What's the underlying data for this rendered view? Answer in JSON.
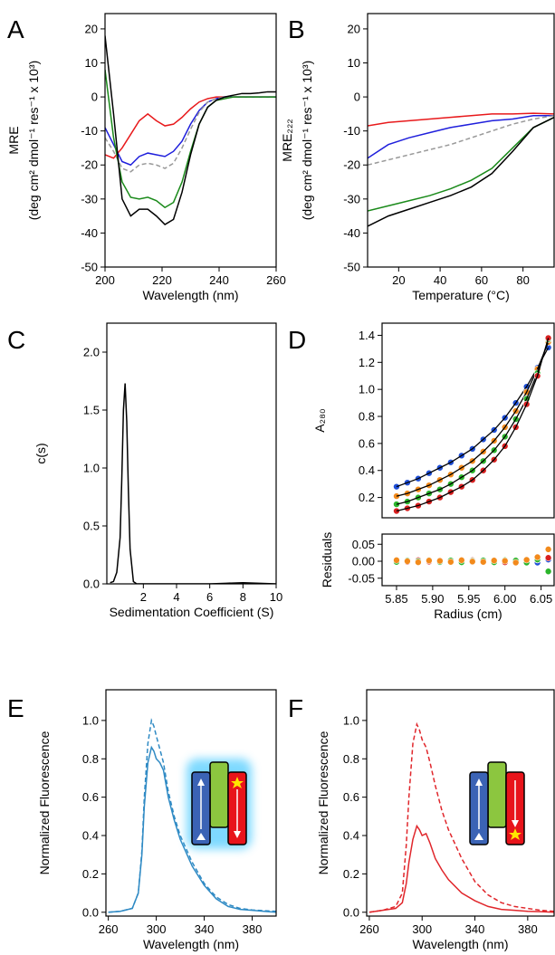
{
  "chart_data": [
    {
      "type": "line",
      "label": "A",
      "xlabel": "Wavelength (nm)",
      "ylabel": [
        "MRE",
        "(deg cm² dmol⁻¹ res⁻¹ x 10³)"
      ],
      "xlim": [
        200,
        260
      ],
      "ylim": [
        -50,
        24.5
      ],
      "xticks": [
        200,
        220,
        240,
        260
      ],
      "yticks": [
        -50,
        -40,
        -30,
        -20,
        -10,
        0,
        10,
        20
      ],
      "x": [
        200,
        203,
        206,
        209,
        212,
        215,
        218,
        221,
        224,
        227,
        230,
        233,
        236,
        239,
        242,
        245,
        248,
        251,
        254,
        257,
        260
      ],
      "series": [
        {
          "color": "#e8191b",
          "values": [
            -17,
            -18,
            -15,
            -11,
            -7,
            -5,
            -7,
            -8.5,
            -8,
            -6,
            -3.5,
            -1.5,
            -0.5,
            0,
            0,
            0,
            0,
            0,
            0,
            0,
            0
          ]
        },
        {
          "color": "#1f1fdc",
          "values": [
            -9,
            -14,
            -19,
            -20,
            -17.5,
            -16.5,
            -17,
            -17.5,
            -16,
            -13,
            -8,
            -4,
            -1.5,
            -0.5,
            0,
            0,
            0,
            0,
            0,
            0,
            0
          ]
        },
        {
          "color": "#999999",
          "dash": true,
          "values": [
            -12,
            -16,
            -21,
            -22,
            -20,
            -19.5,
            -20,
            -21,
            -19.5,
            -15,
            -9.5,
            -4.5,
            -1.5,
            -0.5,
            0,
            0,
            0,
            0,
            0,
            0,
            0
          ]
        },
        {
          "color": "#1a8a1a",
          "values": [
            8,
            -12,
            -25,
            -29.5,
            -30,
            -29.5,
            -30.5,
            -32.5,
            -31,
            -25,
            -16,
            -8,
            -3,
            -1,
            -0.5,
            0,
            0,
            0,
            0,
            0,
            0
          ]
        },
        {
          "color": "#000000",
          "values": [
            18,
            -5,
            -30,
            -35,
            -33,
            -33,
            -35,
            -37.5,
            -36,
            -28,
            -17,
            -8,
            -3,
            -1,
            0,
            0.5,
            1,
            1,
            1.2,
            1.5,
            1.5
          ]
        }
      ]
    },
    {
      "type": "line",
      "label": "B",
      "xlabel": "Temperature (°C)",
      "ylabel": [
        "MRE₂₂₂",
        "(deg cm² dmol⁻¹ res⁻¹ x 10³)"
      ],
      "xlim": [
        5,
        95
      ],
      "ylim": [
        -50,
        24.5
      ],
      "xticks": [
        20,
        40,
        60,
        80
      ],
      "yticks": [
        -50,
        -40,
        -30,
        -20,
        -10,
        0,
        10,
        20
      ],
      "x": [
        5,
        15,
        25,
        35,
        45,
        55,
        65,
        75,
        85,
        95
      ],
      "series": [
        {
          "color": "#e8191b",
          "values": [
            -8.5,
            -7.5,
            -7,
            -6.5,
            -6,
            -5.5,
            -5,
            -5,
            -4.8,
            -5
          ]
        },
        {
          "color": "#1f1fdc",
          "values": [
            -18,
            -14,
            -12,
            -10.5,
            -9,
            -8,
            -7,
            -6.5,
            -5.5,
            -5.5
          ]
        },
        {
          "color": "#999999",
          "dash": true,
          "values": [
            -20,
            -18.5,
            -17,
            -15.5,
            -14,
            -12,
            -10,
            -8,
            -6.5,
            -5.5
          ]
        },
        {
          "color": "#1a8a1a",
          "values": [
            -33.5,
            -32,
            -30.5,
            -29,
            -27,
            -24.5,
            -21,
            -15,
            -9,
            -6
          ]
        },
        {
          "color": "#000000",
          "values": [
            -38,
            -35,
            -33,
            -31,
            -29,
            -26.5,
            -22.5,
            -16,
            -9,
            -6
          ]
        }
      ]
    },
    {
      "type": "line",
      "label": "C",
      "xlabel": "Sedimentation Coefficient (S)",
      "ylabel": [
        "c(s)"
      ],
      "xlim": [
        -0.2,
        10
      ],
      "ylim": [
        0,
        2.25
      ],
      "xticks": [
        2,
        4,
        6,
        8,
        10
      ],
      "yticks": [
        {
          "value": 0,
          "label": "0.0"
        },
        0.5,
        {
          "value": 1,
          "label": "1.0"
        },
        1.5,
        {
          "value": 2,
          "label": "2.0"
        }
      ],
      "x": [
        0,
        0.2,
        0.4,
        0.6,
        0.7,
        0.8,
        0.9,
        1.0,
        1.1,
        1.2,
        1.4,
        1.6,
        2,
        4,
        6,
        7,
        8,
        9,
        10
      ],
      "series": [
        {
          "color": "#000000",
          "values": [
            0.01,
            0.02,
            0.1,
            0.4,
            0.9,
            1.5,
            1.73,
            1.4,
            0.8,
            0.3,
            0.02,
            0,
            0,
            0,
            0,
            0.005,
            0.01,
            0.005,
            0
          ]
        }
      ]
    },
    {
      "type": "scatter",
      "label": "D",
      "ylabel": [
        "A₂₈₀"
      ],
      "fit_line": true,
      "xlim": [
        5.83,
        6.068
      ],
      "ylim": [
        0.05,
        1.49
      ],
      "yticks": [
        0.2,
        0.4,
        0.6,
        0.8,
        {
          "value": 1,
          "label": "1.0"
        },
        1.2,
        1.4
      ],
      "x": [
        5.85,
        5.865,
        5.88,
        5.895,
        5.91,
        5.925,
        5.94,
        5.955,
        5.97,
        5.985,
        6.0,
        6.015,
        6.03,
        6.045,
        6.06
      ],
      "series": [
        {
          "color": "#1f4fd8",
          "values": [
            0.28,
            0.31,
            0.34,
            0.38,
            0.42,
            0.46,
            0.51,
            0.56,
            0.63,
            0.7,
            0.79,
            0.9,
            1.02,
            1.16,
            1.31
          ]
        },
        {
          "color": "#f28a1c",
          "values": [
            0.21,
            0.23,
            0.26,
            0.29,
            0.33,
            0.37,
            0.42,
            0.47,
            0.54,
            0.62,
            0.72,
            0.84,
            0.98,
            1.15,
            1.35
          ]
        },
        {
          "color": "#2bb52b",
          "values": [
            0.15,
            0.17,
            0.2,
            0.23,
            0.26,
            0.3,
            0.35,
            0.4,
            0.47,
            0.55,
            0.65,
            0.78,
            0.93,
            1.12,
            1.37
          ]
        },
        {
          "color": "#d81f1f",
          "values": [
            0.1,
            0.12,
            0.14,
            0.17,
            0.2,
            0.24,
            0.28,
            0.33,
            0.4,
            0.48,
            0.58,
            0.72,
            0.89,
            1.1,
            1.38
          ]
        }
      ]
    },
    {
      "type": "scatter",
      "xlabel": "Radius (cm)",
      "ylabel": [
        "Residuals"
      ],
      "xlim": [
        5.83,
        6.068
      ],
      "ylim": [
        -0.072,
        0.08
      ],
      "xticks": [
        5.85,
        {
          "value": 5.9,
          "label": "5.90"
        },
        5.95,
        {
          "value": 6,
          "label": "6.00"
        },
        6.05
      ],
      "yticks": [
        -0.05,
        {
          "value": 0,
          "label": "0.00"
        },
        0.05
      ],
      "x": [
        5.85,
        5.865,
        5.88,
        5.895,
        5.91,
        5.925,
        5.94,
        5.955,
        5.97,
        5.985,
        6.0,
        6.015,
        6.03,
        6.045,
        6.06
      ],
      "series": [
        {
          "color": "#1f4fd8",
          "values": [
            0,
            0.003,
            -0.002,
            0.002,
            -0.003,
            0.001,
            0.002,
            -0.002,
            0.003,
            -0.001,
            0.002,
            -0.003,
            0.004,
            -0.004,
            0.005
          ]
        },
        {
          "color": "#d81f1f",
          "values": [
            0.002,
            -0.002,
            0.003,
            -0.001,
            0.002,
            -0.002,
            0.001,
            0.003,
            -0.002,
            0.002,
            -0.003,
            0.003,
            -0.002,
            0.004,
            0.01
          ]
        },
        {
          "color": "#2bb52b",
          "values": [
            -0.002,
            0.002,
            0,
            0.003,
            -0.002,
            0.002,
            -0.003,
            0.001,
            0.002,
            -0.003,
            0.003,
            0.002,
            -0.004,
            0.005,
            -0.03
          ]
        },
        {
          "color": "#f28a1c",
          "values": [
            0.003,
            0,
            -0.003,
            0.002,
            0.001,
            -0.002,
            0.003,
            -0.001,
            -0.002,
            0.002,
            0.001,
            -0.004,
            0.004,
            0.012,
            0.035
          ]
        }
      ]
    },
    {
      "type": "line",
      "label": "E",
      "xlabel": "Wavelength (nm)",
      "ylabel": [
        "Normalized Fluorescence"
      ],
      "xlim": [
        258,
        400
      ],
      "ylim": [
        -0.02,
        1.16
      ],
      "xticks": [
        260,
        300,
        340,
        380
      ],
      "yticks": [
        {
          "value": 0,
          "label": "0.0"
        },
        0.2,
        0.4,
        0.6,
        0.8,
        {
          "value": 1,
          "label": "1.0"
        }
      ],
      "x": [
        260,
        270,
        280,
        285,
        288,
        290,
        293,
        296,
        298,
        300,
        303,
        306,
        310,
        315,
        320,
        330,
        340,
        350,
        360,
        370,
        380,
        390,
        400
      ],
      "series": [
        {
          "color": "#2f8ac4",
          "values": [
            0,
            0.005,
            0.02,
            0.1,
            0.3,
            0.55,
            0.78,
            0.86,
            0.84,
            0.8,
            0.78,
            0.74,
            0.6,
            0.48,
            0.38,
            0.24,
            0.14,
            0.07,
            0.03,
            0.015,
            0.01,
            0.005,
            0
          ]
        },
        {
          "color": "#2f8ac4",
          "dash": true,
          "values": [
            0,
            0.005,
            0.02,
            0.1,
            0.32,
            0.6,
            0.88,
            1.0,
            0.97,
            0.92,
            0.85,
            0.78,
            0.63,
            0.5,
            0.4,
            0.26,
            0.15,
            0.08,
            0.04,
            0.02,
            0.012,
            0.008,
            0.005
          ]
        }
      ]
    },
    {
      "type": "line",
      "label": "F",
      "xlabel": "Wavelength (nm)",
      "ylabel": [
        "Normalized Fluorescence"
      ],
      "xlim": [
        258,
        400
      ],
      "ylim": [
        -0.02,
        1.16
      ],
      "xticks": [
        260,
        300,
        340,
        380
      ],
      "yticks": [
        {
          "value": 0,
          "label": "0.0"
        },
        0.2,
        0.4,
        0.6,
        0.8,
        {
          "value": 1,
          "label": "1.0"
        }
      ],
      "x": [
        260,
        270,
        280,
        285,
        288,
        290,
        293,
        296,
        298,
        300,
        303,
        306,
        310,
        315,
        320,
        330,
        340,
        350,
        360,
        370,
        380,
        390,
        400
      ],
      "series": [
        {
          "color": "#e0262b",
          "values": [
            0,
            0.01,
            0.02,
            0.05,
            0.15,
            0.26,
            0.38,
            0.45,
            0.43,
            0.4,
            0.41,
            0.36,
            0.28,
            0.22,
            0.17,
            0.1,
            0.06,
            0.03,
            0.015,
            0.01,
            0.005,
            0.003,
            0
          ]
        },
        {
          "color": "#e0262b",
          "dash": true,
          "values": [
            0,
            0.01,
            0.03,
            0.1,
            0.35,
            0.6,
            0.88,
            0.98,
            0.95,
            0.9,
            0.86,
            0.78,
            0.66,
            0.53,
            0.43,
            0.28,
            0.16,
            0.09,
            0.05,
            0.03,
            0.02,
            0.01,
            0.005
          ]
        }
      ]
    }
  ]
}
